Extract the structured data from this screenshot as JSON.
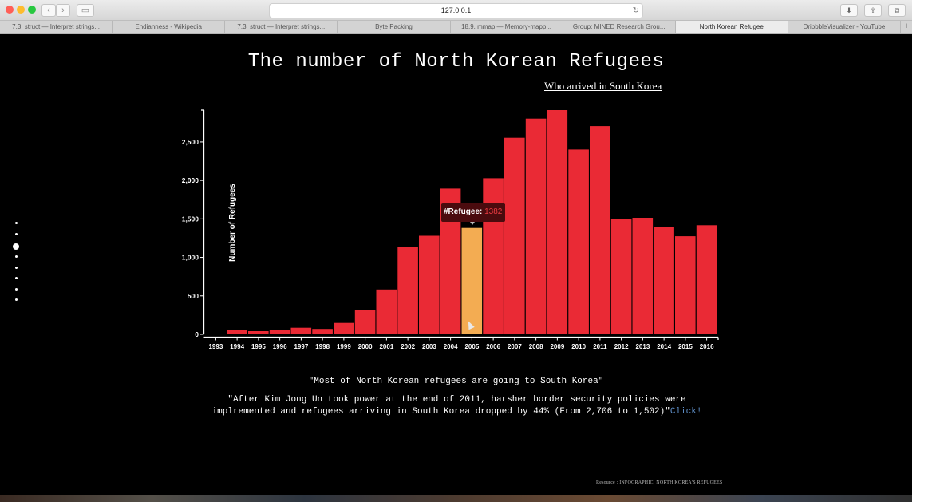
{
  "browser": {
    "url": "127.0.0.1",
    "tabs": [
      {
        "label": "7.3. struct — Interpret strings...",
        "active": false
      },
      {
        "label": "Endianness - Wikipedia",
        "active": false
      },
      {
        "label": "7.3. struct — Interpret strings...",
        "active": false
      },
      {
        "label": "Byte Packing",
        "active": false
      },
      {
        "label": "18.9. mmap — Memory-mapp...",
        "active": false
      },
      {
        "label": "Group: MINED Research Grou...",
        "active": false
      },
      {
        "label": "North Korean Refugee",
        "active": true
      },
      {
        "label": "DribbbleVisualizer - YouTube",
        "active": false
      }
    ],
    "add_tab": "+",
    "reload_icon": "↻",
    "traffic_light_colors": [
      "#ff5f57",
      "#febc2e",
      "#28c840"
    ]
  },
  "page": {
    "title": "The number of North Korean Refugees",
    "subtitle": "Who arrived in South Korea",
    "quote_1": "\"Most of North Korean refugees are going to South Korea\"",
    "quote_2": "\"After Kim Jong Un took power at the end of 2011, harsher border security policies were implremented and refugees arriving in South Korea dropped by 44% (From 2,706 to 1,502)\"",
    "link_text": "Click!",
    "resource": "Resource : INFOGRAPHIC: NORTH KOREA'S REFUGEES",
    "section_dots": 8,
    "active_dot": 2
  },
  "tooltip": {
    "label": "#Refugee: ",
    "value": "1382"
  },
  "chart_data": {
    "type": "bar",
    "ylabel": "Number of Refugees",
    "categories": [
      "1993",
      "1994",
      "1995",
      "1996",
      "1997",
      "1998",
      "1999",
      "2000",
      "2001",
      "2002",
      "2003",
      "2004",
      "2005",
      "2006",
      "2007",
      "2008",
      "2009",
      "2010",
      "2011",
      "2012",
      "2013",
      "2014",
      "2015",
      "2016"
    ],
    "values": [
      8,
      52,
      41,
      56,
      86,
      71,
      148,
      312,
      583,
      1139,
      1281,
      1894,
      1382,
      2028,
      2554,
      2803,
      2914,
      2402,
      2706,
      1502,
      1514,
      1397,
      1275,
      1418
    ],
    "yticks": [
      0,
      500,
      1000,
      1500,
      2000,
      2500
    ],
    "ytick_labels": [
      "0",
      "500",
      "1,000",
      "1,500",
      "2,000",
      "2,500"
    ],
    "ylim": [
      0,
      2914
    ],
    "highlighted_category": "2005",
    "colors": {
      "bar": "#ea2a35",
      "highlight": "#f3ac52",
      "axis": "#ffffff",
      "text": "#ffffff"
    }
  }
}
